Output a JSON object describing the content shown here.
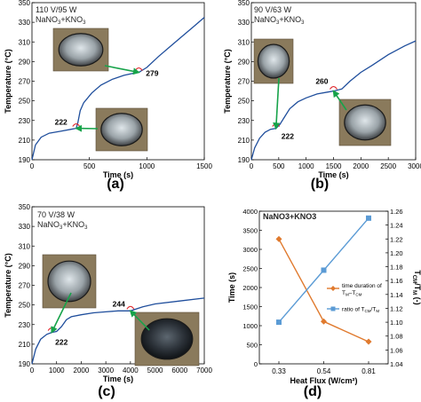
{
  "panels": [
    {
      "id": "a",
      "letter": "(a)",
      "condition_line1": "110 V/95 W",
      "salt_base": "NaNO",
      "salt_sub": "3",
      "salt_mid": "+KNO",
      "salt_sub2": "3",
      "callouts": [
        "222",
        "279"
      ]
    },
    {
      "id": "b",
      "letter": "(b)",
      "condition_line1": "90 V/63 W",
      "salt_base": "NaNO",
      "salt_sub": "3",
      "salt_mid": "+KNO",
      "salt_sub2": "3",
      "callouts": [
        "222",
        "260"
      ]
    },
    {
      "id": "c",
      "letter": "(c)",
      "condition_line1": "70 V/38 W",
      "salt_base": "NaNO",
      "salt_sub": "3",
      "salt_mid": "+KNO",
      "salt_sub2": "3",
      "callouts": [
        "222",
        "244"
      ]
    },
    {
      "id": "d",
      "letter": "(d)",
      "title": "NaNO3+KNO3"
    }
  ],
  "colors": {
    "curve": "#1f4e9c",
    "arrow": "#17a34a",
    "callout": "#e0282d",
    "orange": "#e07a2e",
    "blue": "#5b9bd5",
    "photo_bg": "#8a7a5c"
  },
  "chart_data": [
    {
      "type": "line",
      "panel": "a",
      "xlabel": "Time (s)",
      "ylabel": "Temperature (°C)",
      "xlim": [
        0,
        1500
      ],
      "ylim": [
        190,
        350
      ],
      "xticks": [
        0,
        500,
        1000,
        1500
      ],
      "yticks": [
        190,
        210,
        230,
        250,
        270,
        290,
        310,
        330,
        350
      ],
      "x": [
        0,
        30,
        80,
        150,
        250,
        340,
        385,
        400,
        420,
        450,
        520,
        600,
        700,
        800,
        880,
        930,
        1000,
        1100,
        1200,
        1300,
        1400,
        1500
      ],
      "y": [
        190,
        205,
        213,
        217,
        219,
        221,
        222,
        228,
        240,
        248,
        258,
        266,
        272,
        276,
        278,
        279,
        284,
        295,
        305,
        315,
        325,
        335
      ],
      "annotations": [
        {
          "x": 385,
          "y": 222,
          "label": "222"
        },
        {
          "x": 930,
          "y": 279,
          "label": "279"
        }
      ]
    },
    {
      "type": "line",
      "panel": "b",
      "xlabel": "Time (s)",
      "ylabel": "Temperature (°C)",
      "xlim": [
        0,
        3000
      ],
      "ylim": [
        190,
        350
      ],
      "xticks": [
        0,
        500,
        1000,
        1500,
        2000,
        2500,
        3000
      ],
      "yticks": [
        190,
        210,
        230,
        250,
        270,
        290,
        310,
        330,
        350
      ],
      "x": [
        0,
        60,
        150,
        250,
        350,
        450,
        520,
        600,
        700,
        850,
        1000,
        1200,
        1400,
        1500,
        1650,
        1800,
        2000,
        2200,
        2500,
        2800,
        3000
      ],
      "y": [
        190,
        202,
        212,
        218,
        221,
        222,
        226,
        233,
        242,
        249,
        253,
        257,
        259,
        260,
        262,
        270,
        279,
        286,
        297,
        306,
        311
      ],
      "annotations": [
        {
          "x": 450,
          "y": 222,
          "label": "222"
        },
        {
          "x": 1500,
          "y": 260,
          "label": "260"
        }
      ]
    },
    {
      "type": "line",
      "panel": "c",
      "xlabel": "Time (s)",
      "ylabel": "Temperature (°C)",
      "xlim": [
        0,
        7000
      ],
      "ylim": [
        190,
        350
      ],
      "xticks": [
        0,
        1000,
        2000,
        3000,
        4000,
        5000,
        6000,
        7000
      ],
      "yticks": [
        190,
        210,
        230,
        250,
        270,
        290,
        310,
        330,
        350
      ],
      "x": [
        0,
        150,
        350,
        600,
        800,
        1000,
        1200,
        1400,
        1600,
        2000,
        2500,
        3000,
        3500,
        4000,
        4500,
        5000,
        6000,
        7000
      ],
      "y": [
        190,
        205,
        215,
        220,
        222,
        223,
        228,
        235,
        238,
        240,
        242,
        243,
        244,
        244,
        248,
        251,
        254,
        257
      ],
      "annotations": [
        {
          "x": 800,
          "y": 222,
          "label": "222"
        },
        {
          "x": 4000,
          "y": 244,
          "label": "244"
        }
      ]
    },
    {
      "type": "line",
      "panel": "d",
      "xlabel": "Heat Flux (W/cm²)",
      "ylabel": "Time (s)",
      "y2label": "T_CM/T_M (-)",
      "categories": [
        "0.33",
        "0.54",
        "0.81"
      ],
      "x": [
        0.33,
        0.54,
        0.81
      ],
      "ylim": [
        0,
        4000
      ],
      "yticks": [
        0,
        500,
        1000,
        1500,
        2000,
        2500,
        3000,
        3500,
        4000
      ],
      "y2lim": [
        1.04,
        1.26
      ],
      "y2ticks": [
        1.04,
        1.06,
        1.08,
        1.1,
        1.12,
        1.14,
        1.16,
        1.18,
        1.2,
        1.22,
        1.24,
        1.26
      ],
      "series": [
        {
          "name": "time duration of T_M–T_CM",
          "axis": "left",
          "marker": "diamond",
          "color": "#e07a2e",
          "values": [
            3270,
            1110,
            580
          ]
        },
        {
          "name": "ratio of T_CM/T_M",
          "axis": "right",
          "marker": "square",
          "color": "#5b9bd5",
          "values": [
            1.1,
            1.175,
            1.25
          ]
        }
      ],
      "legend": "center-right"
    }
  ]
}
